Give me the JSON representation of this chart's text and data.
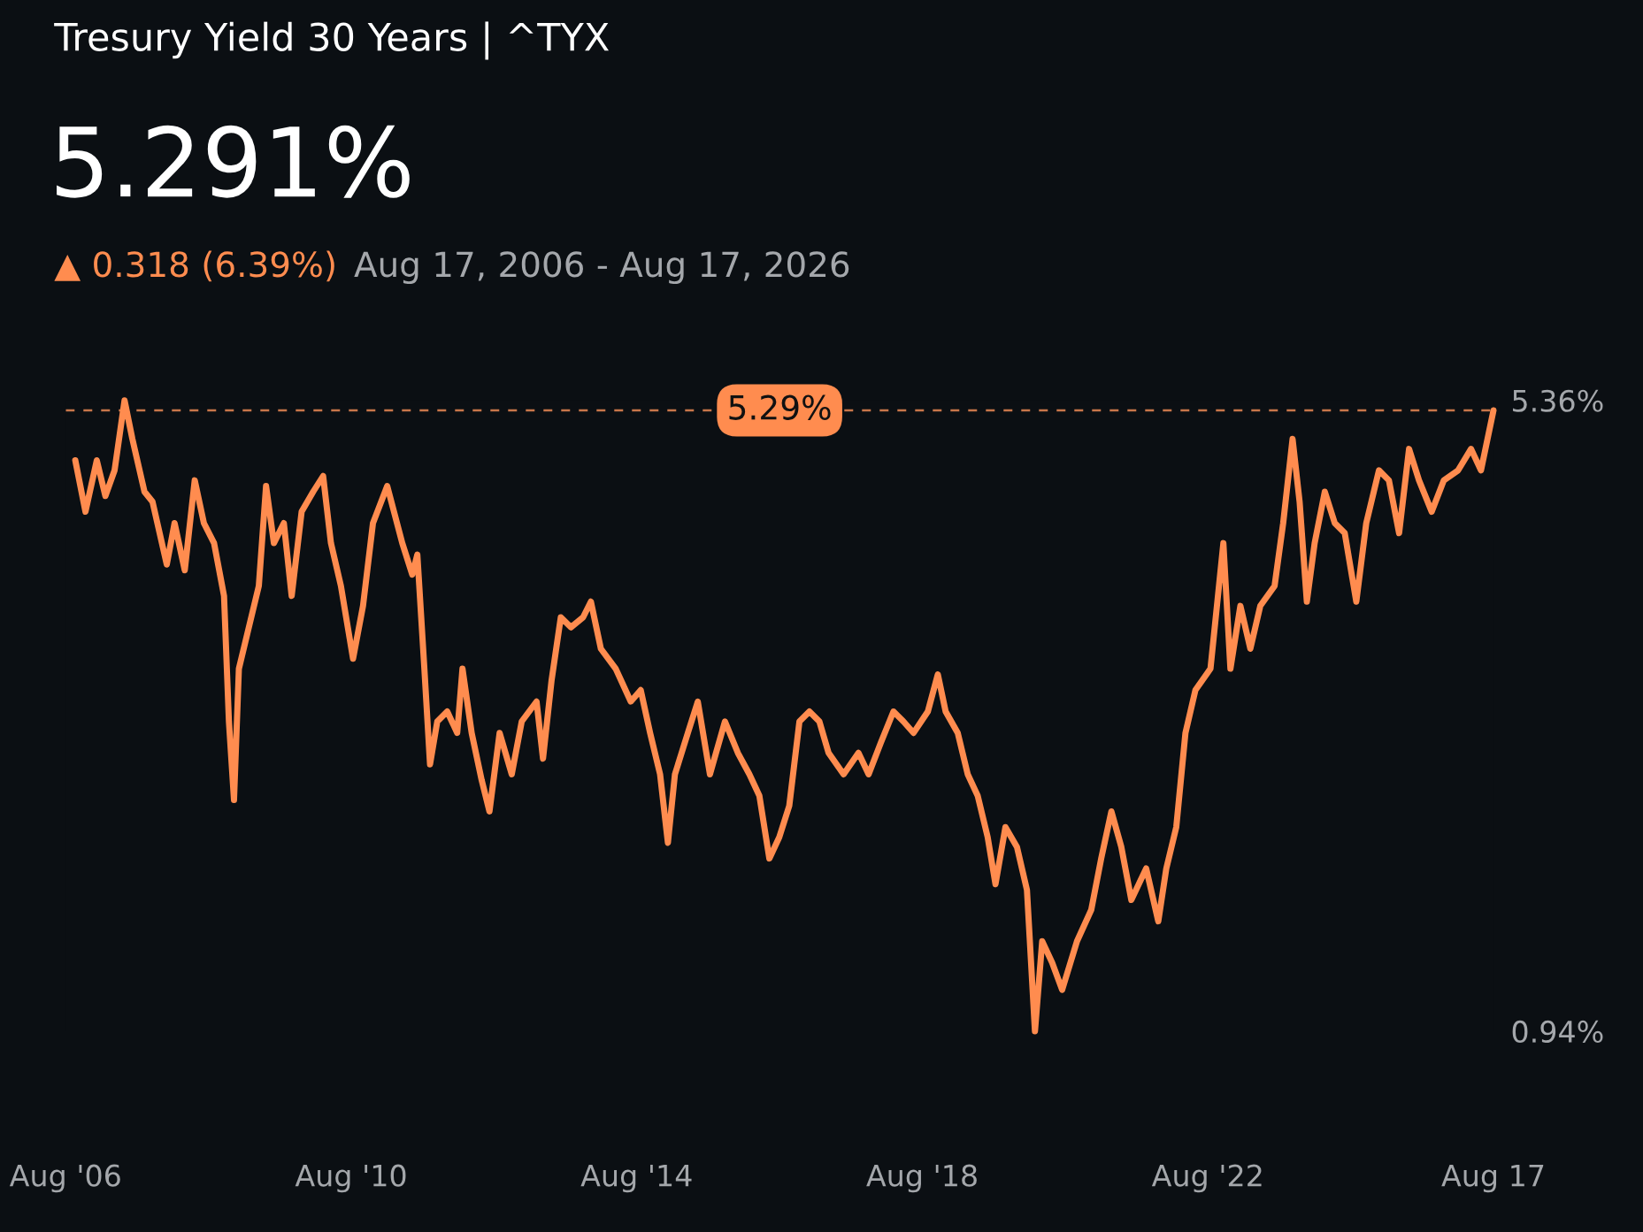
{
  "chart_data": {
    "type": "line",
    "title": "Tresury Yield 30 Years | ^TYX",
    "subtitle": "5.291%",
    "annotations": [
      "▲ 0.318 (6.39%)",
      "Aug 17, 2006 - Aug 17, 2026"
    ],
    "xlim": [
      "2006-08-17",
      "2026-08-17"
    ],
    "xticks": [
      {
        "value": "2006-08-17",
        "label": "Aug '06"
      },
      {
        "value": "2010-08-17",
        "label": "Aug '10"
      },
      {
        "value": "2014-08-17",
        "label": "Aug '14"
      },
      {
        "value": "2018-08-17",
        "label": "Aug '18"
      },
      {
        "value": "2022-08-17",
        "label": "Aug '22"
      },
      {
        "value": "2026-08-17",
        "label": "Aug 17"
      }
    ],
    "ylim": [
      0.94,
      5.36
    ],
    "yticks": [
      {
        "value": 0.94,
        "label": "0.94%"
      },
      {
        "value": 5.36,
        "label": "5.36%"
      }
    ],
    "grid": false,
    "legend": false,
    "marker": "none",
    "line_style": "solid",
    "ref_lines": [
      {
        "axis": "y",
        "value": 5.29,
        "label": "5.29%",
        "color": "#c8764a",
        "line_style": "dashed"
      }
    ],
    "series": [
      {
        "color": "#ff8c4f",
        "x": [
          "2006-10-05",
          "2006-11-26",
          "2007-01-23",
          "2007-03-08",
          "2007-04-24",
          "2007-06-14",
          "2007-07-24",
          "2007-09-24",
          "2007-11-04",
          "2008-01-16",
          "2008-02-25",
          "2008-04-17",
          "2008-06-07",
          "2008-07-24",
          "2008-09-14",
          "2008-11-04",
          "2008-11-29",
          "2008-12-25",
          "2009-01-19",
          "2009-03-11",
          "2009-05-01",
          "2009-06-07",
          "2009-07-17",
          "2009-09-06",
          "2009-10-16",
          "2009-12-06",
          "2010-02-03",
          "2010-03-26",
          "2010-05-05",
          "2010-06-25",
          "2010-08-26",
          "2010-10-16",
          "2010-12-06",
          "2011-02-17",
          "2011-05-05",
          "2011-06-25",
          "2011-07-21",
          "2011-08-26",
          "2011-09-24",
          "2011-10-31",
          "2011-12-21",
          "2012-02-10",
          "2012-03-08",
          "2012-04-24",
          "2012-06-14",
          "2012-07-24",
          "2012-09-14",
          "2012-11-15",
          "2013-01-05",
          "2013-03-22",
          "2013-04-24",
          "2013-06-07",
          "2013-07-24",
          "2013-09-14",
          "2013-11-15",
          "2013-12-25",
          "2014-02-14",
          "2014-05-01",
          "2014-07-17",
          "2014-09-06",
          "2014-10-24",
          "2014-12-14",
          "2015-01-23",
          "2015-02-28",
          "2015-05-05",
          "2015-06-25",
          "2015-08-26",
          "2015-11-11",
          "2016-01-16",
          "2016-03-15",
          "2016-05-05",
          "2016-06-25",
          "2016-08-15",
          "2016-10-05",
          "2016-11-26",
          "2017-01-16",
          "2017-03-08",
          "2017-04-24",
          "2017-07-10",
          "2017-09-24",
          "2017-11-15",
          "2018-01-16",
          "2018-03-22",
          "2018-05-12",
          "2018-07-03",
          "2018-09-14",
          "2018-11-04",
          "2018-12-14",
          "2019-02-14",
          "2019-04-06",
          "2019-05-27",
          "2019-07-17",
          "2019-08-26",
          "2019-10-16",
          "2019-12-14",
          "2020-02-03",
          "2020-03-15",
          "2020-04-21",
          "2020-06-11",
          "2020-08-01",
          "2020-10-16",
          "2020-12-28",
          "2021-02-17",
          "2021-04-10",
          "2021-05-31",
          "2021-07-21",
          "2021-10-05",
          "2021-12-06",
          "2022-01-16",
          "2022-03-08",
          "2022-04-24",
          "2022-06-14",
          "2022-08-30",
          "2022-11-04",
          "2022-12-10",
          "2023-01-30",
          "2023-03-22",
          "2023-05-12",
          "2023-07-24",
          "2023-09-06",
          "2023-10-24",
          "2023-11-29",
          "2024-01-05",
          "2024-02-14",
          "2024-04-06",
          "2024-05-27",
          "2024-07-17",
          "2024-09-14",
          "2024-11-04",
          "2025-01-08",
          "2025-02-28",
          "2025-04-21",
          "2025-06-11",
          "2025-08-01",
          "2025-10-05",
          "2025-12-06",
          "2026-02-17",
          "2026-04-24",
          "2026-06-14",
          "2026-08-17"
        ],
        "values": [
          4.94,
          4.58,
          4.94,
          4.69,
          4.87,
          5.36,
          5.09,
          4.72,
          4.65,
          4.21,
          4.5,
          4.17,
          4.8,
          4.5,
          4.36,
          3.99,
          3.11,
          2.56,
          3.48,
          3.77,
          4.06,
          4.76,
          4.36,
          4.5,
          3.99,
          4.58,
          4.72,
          4.83,
          4.36,
          4.06,
          3.55,
          3.92,
          4.5,
          4.76,
          4.36,
          4.14,
          4.28,
          3.48,
          2.81,
          3.11,
          3.18,
          3.03,
          3.48,
          3.03,
          2.7,
          2.48,
          3.03,
          2.74,
          3.11,
          3.25,
          2.85,
          3.4,
          3.84,
          3.77,
          3.84,
          3.95,
          3.62,
          3.48,
          3.25,
          3.33,
          3.03,
          2.74,
          2.26,
          2.74,
          3.03,
          3.25,
          2.74,
          3.11,
          2.89,
          2.74,
          2.59,
          2.15,
          2.3,
          2.52,
          3.11,
          3.18,
          3.11,
          2.89,
          2.74,
          2.89,
          2.74,
          2.96,
          3.18,
          3.11,
          3.03,
          3.18,
          3.44,
          3.18,
          3.03,
          2.74,
          2.59,
          2.3,
          1.97,
          2.37,
          2.23,
          1.93,
          0.94,
          1.57,
          1.42,
          1.23,
          1.57,
          1.79,
          2.15,
          2.48,
          2.23,
          1.86,
          2.08,
          1.71,
          2.08,
          2.37,
          3.03,
          3.33,
          3.48,
          4.36,
          3.48,
          3.92,
          3.62,
          3.92,
          4.06,
          4.5,
          5.09,
          4.65,
          3.95,
          4.36,
          4.72,
          4.5,
          4.43,
          3.95,
          4.5,
          4.87,
          4.8,
          4.43,
          5.02,
          4.8,
          4.58,
          4.8,
          4.87,
          5.02,
          4.87,
          5.29
        ]
      }
    ]
  }
}
